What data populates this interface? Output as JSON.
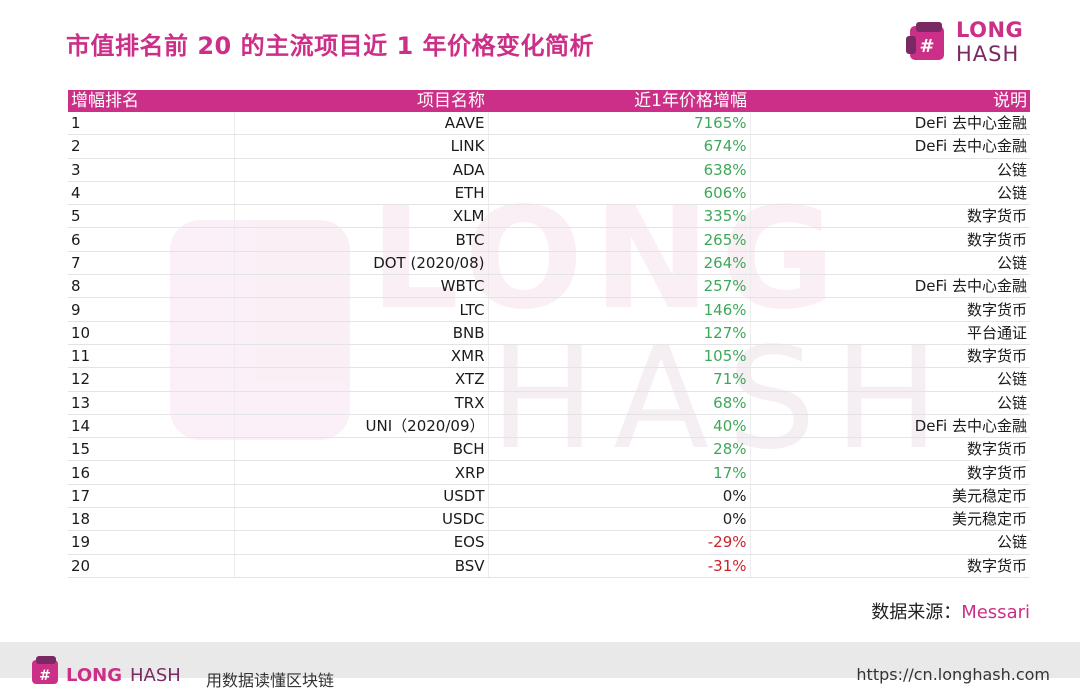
{
  "title": "市值排名前 20 的主流项目近 1 年价格变化简析",
  "brand": {
    "line1": "LONG",
    "line2": "HASH"
  },
  "table": {
    "headers": [
      "增幅排名",
      "项目名称",
      "近1年价格增幅",
      "说明"
    ],
    "rows": [
      {
        "rank": "1",
        "name": "AAVE",
        "change": "7165%",
        "desc": "DeFi 去中心金融",
        "trend": "pos"
      },
      {
        "rank": "2",
        "name": "LINK",
        "change": "674%",
        "desc": "DeFi 去中心金融",
        "trend": "pos"
      },
      {
        "rank": "3",
        "name": "ADA",
        "change": "638%",
        "desc": "公链",
        "trend": "pos"
      },
      {
        "rank": "4",
        "name": "ETH",
        "change": "606%",
        "desc": "公链",
        "trend": "pos"
      },
      {
        "rank": "5",
        "name": "XLM",
        "change": "335%",
        "desc": "数字货币",
        "trend": "pos"
      },
      {
        "rank": "6",
        "name": "BTC",
        "change": "265%",
        "desc": "数字货币",
        "trend": "pos"
      },
      {
        "rank": "7",
        "name": "DOT (2020/08)",
        "change": "264%",
        "desc": "公链",
        "trend": "pos"
      },
      {
        "rank": "8",
        "name": "WBTC",
        "change": "257%",
        "desc": "DeFi 去中心金融",
        "trend": "pos"
      },
      {
        "rank": "9",
        "name": "LTC",
        "change": "146%",
        "desc": "数字货币",
        "trend": "pos"
      },
      {
        "rank": "10",
        "name": "BNB",
        "change": "127%",
        "desc": "平台通证",
        "trend": "pos"
      },
      {
        "rank": "11",
        "name": "XMR",
        "change": "105%",
        "desc": "数字货币",
        "trend": "pos"
      },
      {
        "rank": "12",
        "name": "XTZ",
        "change": "71%",
        "desc": "公链",
        "trend": "pos"
      },
      {
        "rank": "13",
        "name": "TRX",
        "change": "68%",
        "desc": "公链",
        "trend": "pos"
      },
      {
        "rank": "14",
        "name": "UNI（2020/09）",
        "change": "40%",
        "desc": "DeFi 去中心金融",
        "trend": "pos"
      },
      {
        "rank": "15",
        "name": "BCH",
        "change": "28%",
        "desc": "数字货币",
        "trend": "pos"
      },
      {
        "rank": "16",
        "name": "XRP",
        "change": "17%",
        "desc": "数字货币",
        "trend": "pos"
      },
      {
        "rank": "17",
        "name": "USDT",
        "change": "0%",
        "desc": "美元稳定币",
        "trend": "zero"
      },
      {
        "rank": "18",
        "name": "USDC",
        "change": "0%",
        "desc": "美元稳定币",
        "trend": "zero"
      },
      {
        "rank": "19",
        "name": "EOS",
        "change": "-29%",
        "desc": "公链",
        "trend": "neg"
      },
      {
        "rank": "20",
        "name": "BSV",
        "change": "-31%",
        "desc": "数字货币",
        "trend": "neg"
      }
    ]
  },
  "source": {
    "label": "数据来源：",
    "name": "Messari"
  },
  "footer": {
    "brand_long": "LONG",
    "brand_hash": "HASH",
    "slogan": "用数据读懂区块链",
    "url": "https://cn.longhash.com"
  },
  "colors": {
    "accent": "#cc2f87",
    "brand_dark": "#7a2a63",
    "positive": "#3ea85a",
    "negative": "#c8242c"
  }
}
